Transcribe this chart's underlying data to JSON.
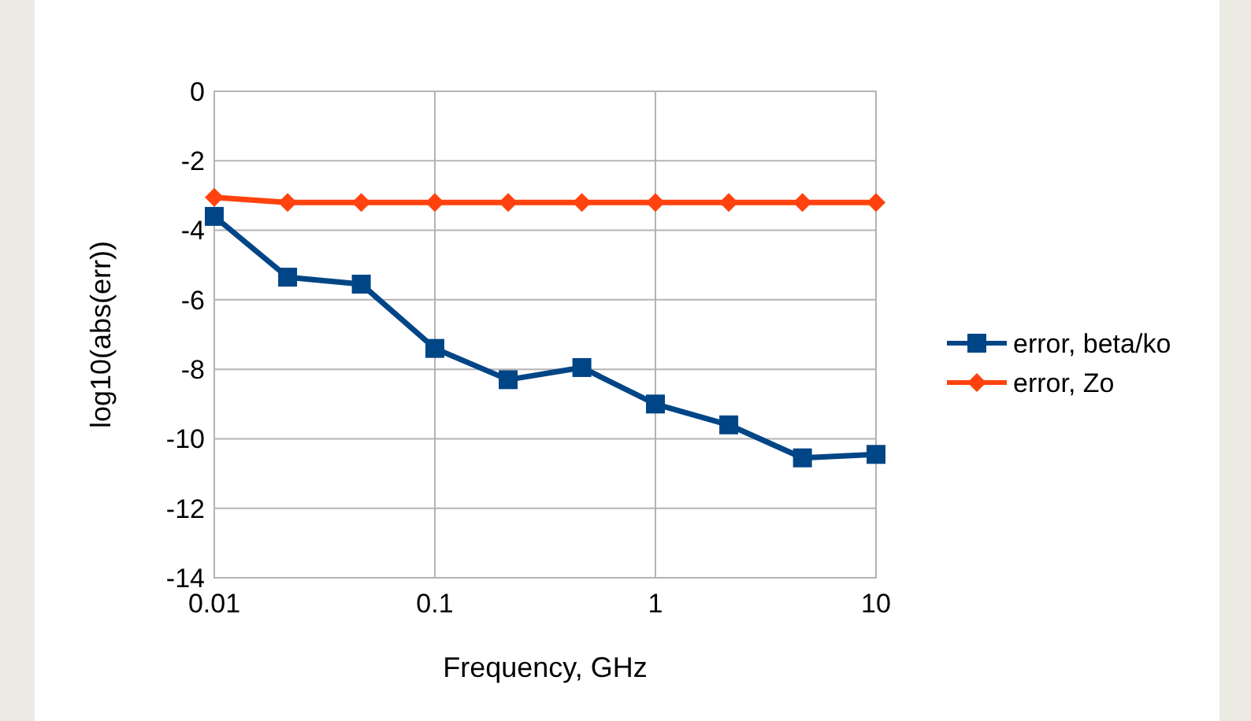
{
  "chart_data": {
    "type": "line",
    "xlabel": "Frequency, GHz",
    "ylabel": "log10(abs(err))",
    "log": "x",
    "x": [
      0.01,
      0.0215,
      0.0464,
      0.1,
      0.215,
      0.464,
      1,
      2.15,
      4.64,
      10
    ],
    "series": [
      {
        "name": "error, beta/ko",
        "color": "#004586",
        "marker": "square",
        "values": [
          -3.6,
          -5.35,
          -5.55,
          -7.4,
          -8.3,
          -7.95,
          -9,
          -9.6,
          -10.55,
          -10.45
        ]
      },
      {
        "name": "error, Zo",
        "color": "#ff420e",
        "marker": "diamond",
        "values": [
          -3.05,
          -3.2,
          -3.2,
          -3.2,
          -3.2,
          -3.2,
          -3.2,
          -3.2,
          -3.2,
          -3.2
        ]
      }
    ],
    "xlim": [
      0.01,
      10
    ],
    "xticks": [
      0.01,
      0.1,
      1,
      10
    ],
    "ylim": [
      -14,
      0
    ],
    "yticks": [
      -14,
      -12,
      -10,
      -8,
      -6,
      -4,
      -2,
      0
    ],
    "grid": true,
    "legend": "right",
    "line_style": "solid"
  }
}
